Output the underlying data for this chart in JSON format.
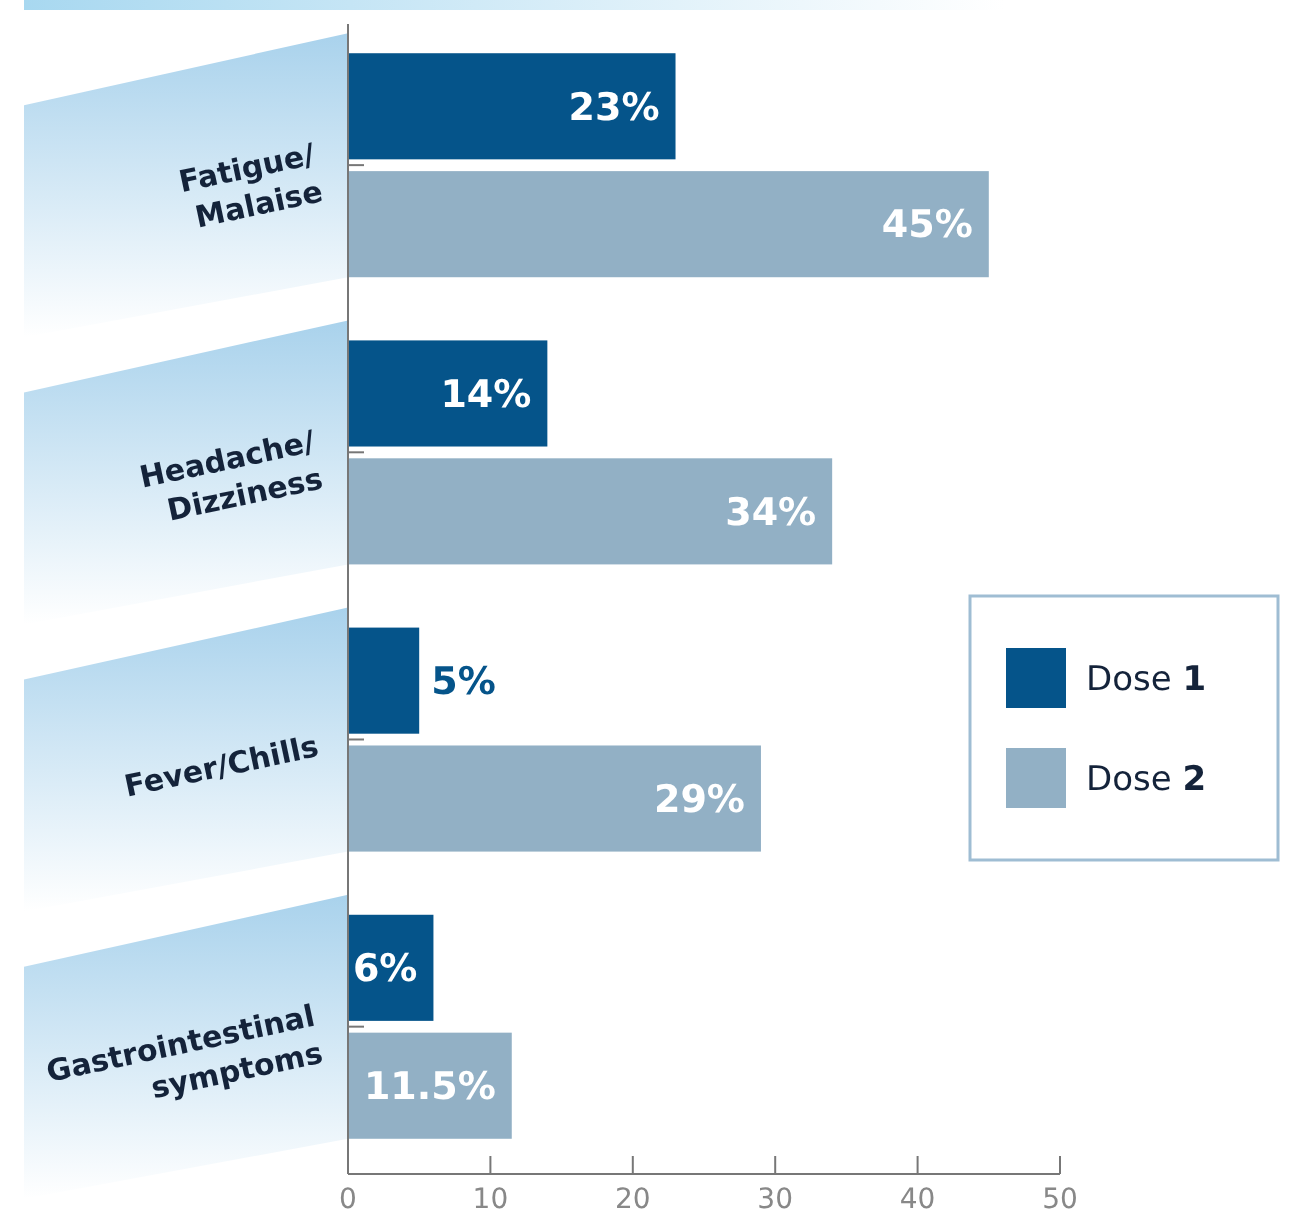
{
  "chart_data": {
    "type": "bar",
    "orientation": "horizontal",
    "categories": [
      "Fatigue/Malaise",
      "Headache/Dizziness",
      "Fever/Chills",
      "Gastrointestinal symptoms"
    ],
    "series": [
      {
        "name": "Dose 1",
        "color": "#05548a",
        "values": [
          23,
          14,
          5,
          6
        ],
        "value_labels": [
          "23%",
          "14%",
          "5%",
          "6%"
        ]
      },
      {
        "name": "Dose 2",
        "color": "#92b0c5",
        "values": [
          45,
          34,
          29,
          11.5
        ],
        "value_labels": [
          "45%",
          "34%",
          "29%",
          "11.5%"
        ]
      }
    ],
    "xlim": [
      0,
      50
    ],
    "xticks": [
      0,
      10,
      20,
      30,
      40,
      50
    ],
    "grid": false,
    "legend": "right"
  }
}
